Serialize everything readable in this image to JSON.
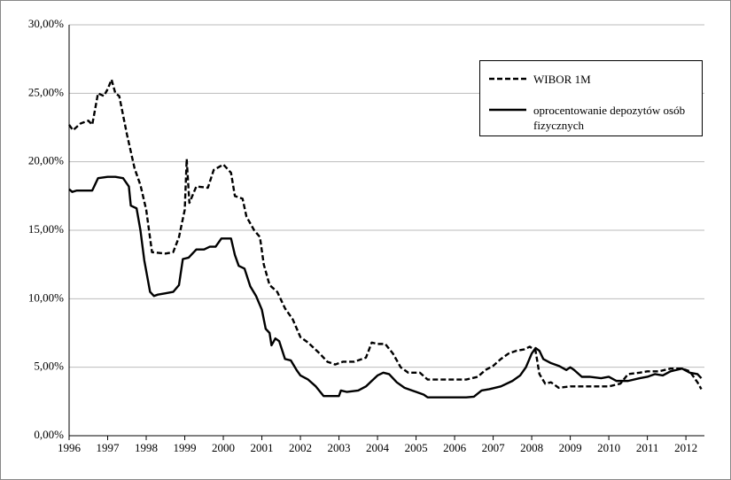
{
  "chart_data": {
    "type": "line",
    "xlim": [
      1996,
      2012.48
    ],
    "xticks": [
      1996,
      1997,
      1998,
      1999,
      2000,
      2001,
      2002,
      2003,
      2004,
      2005,
      2006,
      2007,
      2008,
      2009,
      2010,
      2011,
      2012
    ],
    "ylim": [
      0,
      30
    ],
    "yticks": [
      {
        "value": 0,
        "label": "0,00%"
      },
      {
        "value": 5,
        "label": "5,00%"
      },
      {
        "value": 10,
        "label": "10,00%"
      },
      {
        "value": 15,
        "label": "15,00%"
      },
      {
        "value": 20,
        "label": "20,00%"
      },
      {
        "value": 25,
        "label": "25,00%"
      },
      {
        "value": 30,
        "label": "30,00%"
      }
    ],
    "grid": true,
    "legend": "top-right",
    "series": [
      {
        "name": "WIBOR 1M",
        "color": "#000000",
        "dash": true,
        "x": [
          1996.0,
          1996.1,
          1996.3,
          1996.5,
          1996.6,
          1996.75,
          1996.9,
          1997.0,
          1997.1,
          1997.2,
          1997.3,
          1997.5,
          1997.7,
          1997.85,
          1998.0,
          1998.15,
          1998.5,
          1998.7,
          1998.85,
          1999.0,
          1999.05,
          1999.12,
          1999.3,
          1999.6,
          1999.75,
          2000.0,
          2000.2,
          2000.3,
          2000.5,
          2000.6,
          2000.8,
          2000.95,
          2001.05,
          2001.2,
          2001.4,
          2001.6,
          2001.8,
          2002.0,
          2002.2,
          2002.5,
          2002.7,
          2002.9,
          2003.1,
          2003.4,
          2003.7,
          2003.85,
          2004.0,
          2004.2,
          2004.4,
          2004.6,
          2004.8,
          2005.1,
          2005.3,
          2005.7,
          2006.0,
          2006.3,
          2006.6,
          2006.8,
          2007.0,
          2007.2,
          2007.4,
          2007.6,
          2007.8,
          2007.95,
          2008.1,
          2008.2,
          2008.35,
          2008.5,
          2008.7,
          2009.0,
          2009.5,
          2010.0,
          2010.3,
          2010.5,
          2010.8,
          2011.0,
          2011.3,
          2011.6,
          2011.9,
          2012.1,
          2012.3,
          2012.4
        ],
        "values": [
          22.7,
          22.3,
          22.8,
          23.0,
          22.7,
          25.0,
          24.8,
          25.3,
          26.0,
          25.0,
          24.8,
          22.0,
          19.5,
          18.3,
          16.5,
          13.4,
          13.3,
          13.4,
          14.5,
          16.5,
          20.2,
          17.0,
          18.2,
          18.1,
          19.4,
          19.8,
          19.2,
          17.5,
          17.3,
          16.0,
          15.0,
          14.5,
          12.5,
          11.0,
          10.5,
          9.3,
          8.5,
          7.2,
          6.8,
          6.0,
          5.4,
          5.2,
          5.4,
          5.4,
          5.7,
          6.8,
          6.7,
          6.7,
          6.0,
          5.0,
          4.6,
          4.6,
          4.1,
          4.1,
          4.1,
          4.1,
          4.3,
          4.8,
          5.1,
          5.6,
          6.0,
          6.2,
          6.3,
          6.5,
          6.2,
          4.5,
          3.8,
          3.9,
          3.5,
          3.6,
          3.6,
          3.6,
          3.8,
          4.5,
          4.6,
          4.7,
          4.7,
          4.9,
          4.9,
          4.7,
          3.9,
          3.4
        ]
      },
      {
        "name": "oprocentowanie depozytów osób fizycznych",
        "color": "#000000",
        "dash": false,
        "x": [
          1996.0,
          1996.08,
          1996.2,
          1996.6,
          1996.75,
          1997.0,
          1997.2,
          1997.4,
          1997.55,
          1997.6,
          1997.75,
          1997.85,
          1997.95,
          1998.1,
          1998.2,
          1998.3,
          1998.5,
          1998.7,
          1998.85,
          1998.95,
          1999.1,
          1999.3,
          1999.5,
          1999.65,
          1999.8,
          1999.95,
          2000.2,
          2000.3,
          2000.4,
          2000.55,
          2000.7,
          2000.85,
          2001.0,
          2001.1,
          2001.2,
          2001.25,
          2001.35,
          2001.45,
          2001.6,
          2001.75,
          2001.9,
          2002.0,
          2002.2,
          2002.4,
          2002.6,
          2002.8,
          2003.0,
          2003.05,
          2003.2,
          2003.5,
          2003.7,
          2003.85,
          2004.0,
          2004.15,
          2004.3,
          2004.5,
          2004.7,
          2004.9,
          2005.0,
          2005.2,
          2005.3,
          2005.6,
          2006.0,
          2006.3,
          2006.5,
          2006.7,
          2006.9,
          2007.2,
          2007.5,
          2007.7,
          2007.85,
          2008.0,
          2008.1,
          2008.2,
          2008.3,
          2008.5,
          2008.7,
          2008.9,
          2009.0,
          2009.1,
          2009.3,
          2009.5,
          2009.8,
          2010.0,
          2010.2,
          2010.5,
          2010.8,
          2011.0,
          2011.2,
          2011.4,
          2011.6,
          2011.9,
          2012.1,
          2012.3,
          2012.4
        ],
        "values": [
          18.0,
          17.8,
          17.9,
          17.9,
          18.8,
          18.9,
          18.9,
          18.8,
          18.2,
          16.8,
          16.6,
          15.0,
          12.8,
          10.5,
          10.2,
          10.3,
          10.4,
          10.5,
          11.0,
          12.9,
          13.0,
          13.6,
          13.6,
          13.8,
          13.8,
          14.4,
          14.4,
          13.2,
          12.4,
          12.2,
          10.9,
          10.2,
          9.2,
          7.8,
          7.5,
          6.6,
          7.1,
          6.9,
          5.6,
          5.5,
          4.8,
          4.4,
          4.1,
          3.6,
          2.9,
          2.9,
          2.9,
          3.3,
          3.2,
          3.3,
          3.6,
          4.0,
          4.4,
          4.6,
          4.5,
          3.9,
          3.5,
          3.3,
          3.2,
          3.0,
          2.8,
          2.8,
          2.8,
          2.8,
          2.85,
          3.3,
          3.4,
          3.6,
          4.0,
          4.4,
          5.0,
          6.0,
          6.4,
          6.2,
          5.6,
          5.3,
          5.1,
          4.8,
          5.0,
          4.8,
          4.3,
          4.3,
          4.2,
          4.3,
          4.0,
          4.0,
          4.2,
          4.3,
          4.5,
          4.4,
          4.7,
          4.9,
          4.6,
          4.5,
          4.2
        ]
      }
    ]
  }
}
